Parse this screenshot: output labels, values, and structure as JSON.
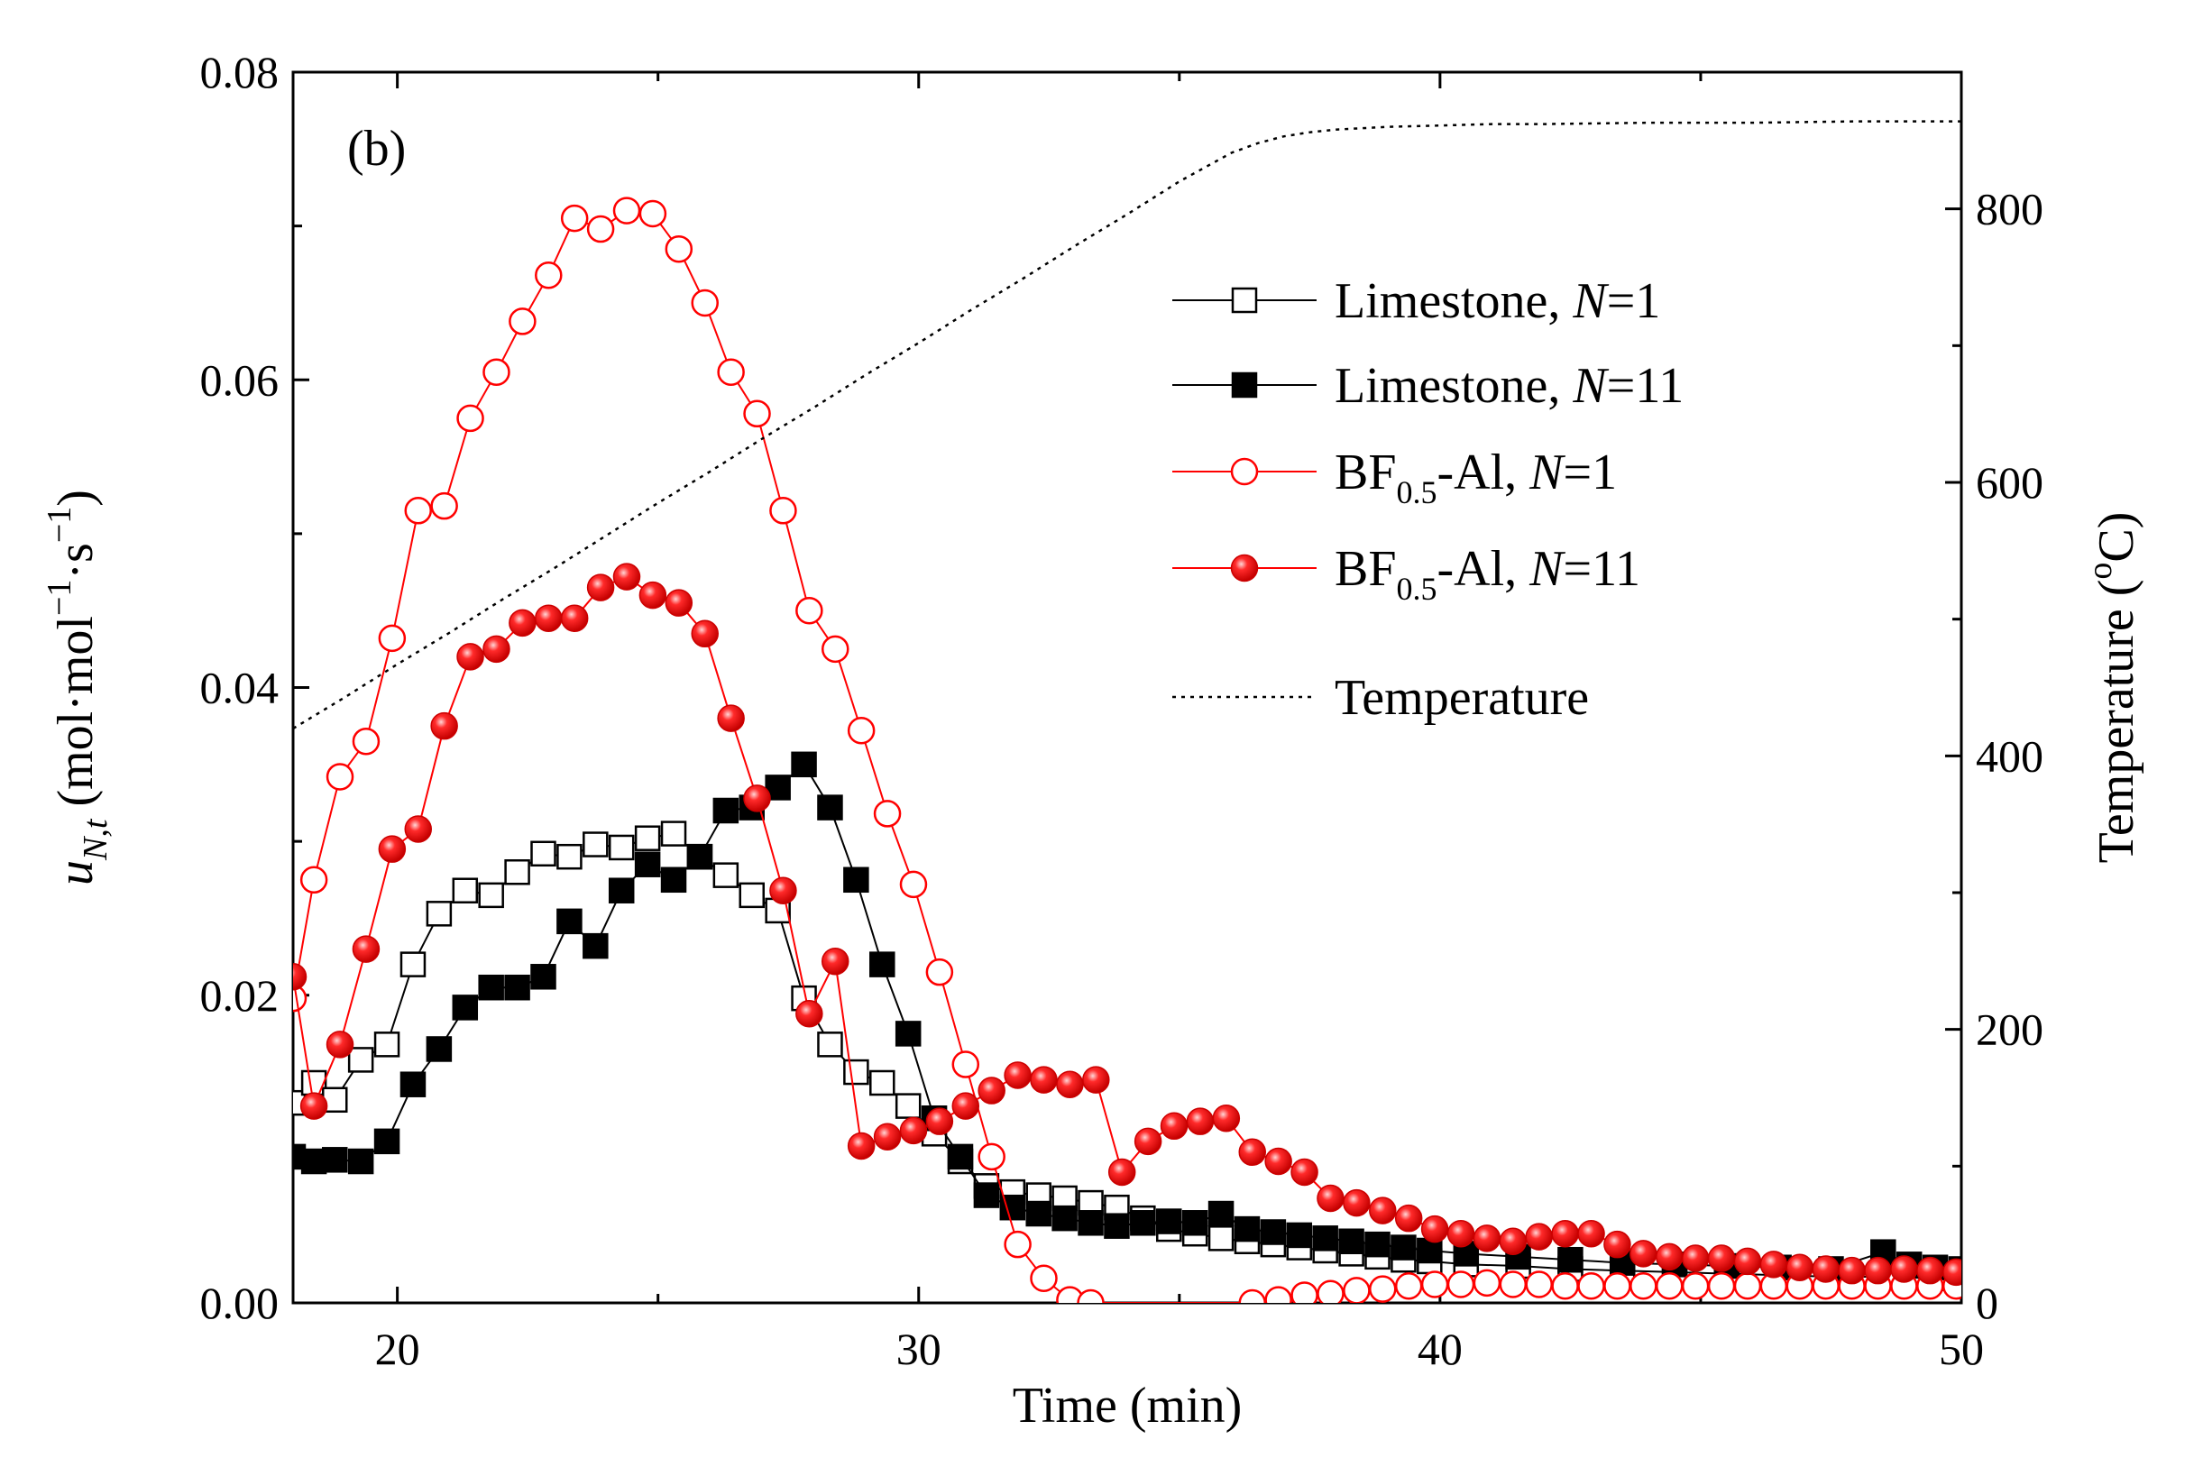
{
  "chart_data": {
    "type": "line",
    "panel_label": "(b)",
    "xlabel": "Time (min)",
    "ylabel": {
      "main": "u",
      "sub": "N,t",
      "unit_open": " (mol·mol",
      "exp1": "−1",
      "unit_mid": "·s",
      "exp2": "−1",
      "unit_close": ")"
    },
    "y2label": {
      "main": "Temperature (",
      "sup": "o",
      "end": "C)"
    },
    "xlim": [
      18,
      50
    ],
    "ylim": [
      0,
      0.08
    ],
    "y2lim": [
      0,
      900
    ],
    "xticks": [
      20,
      30,
      40,
      50
    ],
    "yticks": [
      0,
      0.02,
      0.04,
      0.06,
      0.08
    ],
    "ytick_labels": [
      "0.00",
      "0.02",
      "0.04",
      "0.06",
      "0.08"
    ],
    "y2ticks": [
      0,
      200,
      400,
      600,
      800
    ],
    "legend_position": "upper-right",
    "series": [
      {
        "name": "Limestone, N=1",
        "legend": {
          "base": "Limestone, ",
          "italic": "N",
          "rest": "=1"
        },
        "color": "#000000",
        "marker": "square-open",
        "axis": "left",
        "x": [
          18.0,
          18.4,
          18.8,
          19.3,
          19.8,
          20.3,
          20.8,
          21.3,
          21.8,
          22.3,
          22.8,
          23.3,
          23.8,
          24.3,
          24.8,
          25.3,
          25.8,
          26.3,
          26.8,
          27.3,
          27.8,
          28.3,
          28.8,
          29.3,
          29.8,
          30.3,
          30.8,
          31.3,
          31.8,
          32.3,
          32.8,
          33.3,
          33.8,
          34.3,
          34.8,
          35.3,
          35.8,
          36.3,
          36.8,
          37.3,
          37.8,
          38.3,
          38.8,
          39.3,
          39.8,
          40.5,
          41.5,
          42.5,
          43.5,
          44.5,
          45.5,
          46.5,
          47.5,
          48.5,
          49.5,
          50.0
        ],
        "y": [
          0.013,
          0.0143,
          0.0132,
          0.0158,
          0.0168,
          0.022,
          0.0253,
          0.0268,
          0.0265,
          0.028,
          0.0292,
          0.029,
          0.0298,
          0.0296,
          0.0302,
          0.0305,
          0.029,
          0.0278,
          0.0265,
          0.0255,
          0.0198,
          0.0168,
          0.015,
          0.0143,
          0.0128,
          0.011,
          0.0092,
          0.0076,
          0.0072,
          0.007,
          0.0068,
          0.0065,
          0.0062,
          0.0055,
          0.0048,
          0.0045,
          0.0042,
          0.004,
          0.0038,
          0.0036,
          0.0034,
          0.0032,
          0.003,
          0.0028,
          0.0027,
          0.0025,
          0.0024,
          0.0022,
          0.0021,
          0.002,
          0.0019,
          0.0018,
          0.0017,
          0.0017,
          0.0016,
          0.0016
        ]
      },
      {
        "name": "Limestone, N=11",
        "legend": {
          "base": "Limestone, ",
          "italic": "N",
          "rest": "=11"
        },
        "color": "#000000",
        "marker": "square-filled",
        "axis": "left",
        "x": [
          18.0,
          18.4,
          18.8,
          19.3,
          19.8,
          20.3,
          20.8,
          21.3,
          21.8,
          22.3,
          22.8,
          23.3,
          23.8,
          24.3,
          24.8,
          25.3,
          25.8,
          26.3,
          26.8,
          27.3,
          27.8,
          28.3,
          28.8,
          29.3,
          29.8,
          30.3,
          30.8,
          31.3,
          31.8,
          32.3,
          32.8,
          33.3,
          33.8,
          34.3,
          34.8,
          35.3,
          35.8,
          36.3,
          36.8,
          37.3,
          37.8,
          38.3,
          38.8,
          39.3,
          39.8,
          40.5,
          41.5,
          42.5,
          43.5,
          44.5,
          45.5,
          46.5,
          47.5,
          48.5,
          49.0,
          49.5,
          50.0
        ],
        "y": [
          0.0095,
          0.0092,
          0.0093,
          0.0092,
          0.0105,
          0.0142,
          0.0165,
          0.0192,
          0.0205,
          0.0205,
          0.0212,
          0.0248,
          0.0232,
          0.0268,
          0.0285,
          0.0275,
          0.029,
          0.032,
          0.0322,
          0.0335,
          0.035,
          0.0322,
          0.0275,
          0.022,
          0.0175,
          0.012,
          0.0095,
          0.007,
          0.0062,
          0.0058,
          0.0055,
          0.0052,
          0.005,
          0.0052,
          0.0053,
          0.0052,
          0.0058,
          0.0048,
          0.0046,
          0.0044,
          0.0042,
          0.004,
          0.0038,
          0.0036,
          0.0034,
          0.0032,
          0.003,
          0.0028,
          0.0026,
          0.0025,
          0.0024,
          0.0023,
          0.0022,
          0.0033,
          0.0025,
          0.0023,
          0.0022
        ]
      },
      {
        "name": "BF0.5-Al, N=1",
        "legend": {
          "base": "BF",
          "sub": "0.5",
          "mid": "-Al, ",
          "italic": "N",
          "rest": "=1"
        },
        "color": "#ff0000",
        "marker": "circle-open",
        "axis": "left",
        "x": [
          18.0,
          18.4,
          18.9,
          19.4,
          19.9,
          20.4,
          20.9,
          21.4,
          21.9,
          22.4,
          22.9,
          23.4,
          23.9,
          24.4,
          24.9,
          25.4,
          25.9,
          26.4,
          26.9,
          27.4,
          27.9,
          28.4,
          28.9,
          29.4,
          29.9,
          30.4,
          30.9,
          31.4,
          31.9,
          32.4,
          32.9,
          33.3,
          36.4,
          36.9,
          37.4,
          37.9,
          38.4,
          38.9,
          39.4,
          39.9,
          40.4,
          40.9,
          41.4,
          41.9,
          42.4,
          42.9,
          43.4,
          43.9,
          44.4,
          44.9,
          45.4,
          45.9,
          46.4,
          46.9,
          47.4,
          47.9,
          48.4,
          48.9,
          49.4,
          49.9
        ],
        "y": [
          0.0198,
          0.0275,
          0.0342,
          0.0365,
          0.0432,
          0.0515,
          0.0518,
          0.0575,
          0.0605,
          0.0638,
          0.0668,
          0.0705,
          0.0698,
          0.071,
          0.0708,
          0.0685,
          0.065,
          0.0605,
          0.0578,
          0.0515,
          0.045,
          0.0425,
          0.0372,
          0.0318,
          0.0272,
          0.0215,
          0.0155,
          0.0095,
          0.0038,
          0.0016,
          0.0002,
          0.0,
          0.0,
          0.0002,
          0.0005,
          0.0006,
          0.0008,
          0.0009,
          0.0011,
          0.0012,
          0.0012,
          0.0013,
          0.0012,
          0.0012,
          0.0011,
          0.0011,
          0.0011,
          0.0011,
          0.0011,
          0.0011,
          0.0011,
          0.0011,
          0.0011,
          0.0011,
          0.0011,
          0.0011,
          0.0011,
          0.0011,
          0.0011,
          0.0011
        ]
      },
      {
        "name": "BF0.5-Al, N=11",
        "legend": {
          "base": "BF",
          "sub": "0.5",
          "mid": "-Al, ",
          "italic": "N",
          "rest": "=11"
        },
        "color": "#ff0000",
        "marker": "circle-filled",
        "axis": "left",
        "x": [
          18.0,
          18.4,
          18.9,
          19.4,
          19.9,
          20.4,
          20.9,
          21.4,
          21.9,
          22.4,
          22.9,
          23.4,
          23.9,
          24.4,
          24.9,
          25.4,
          25.9,
          26.4,
          26.9,
          27.4,
          27.9,
          28.4,
          28.9,
          29.4,
          29.9,
          30.4,
          30.9,
          31.4,
          31.9,
          32.4,
          32.9,
          33.4,
          33.9,
          34.4,
          34.9,
          35.4,
          35.9,
          36.4,
          36.9,
          37.4,
          37.9,
          38.4,
          38.9,
          39.4,
          39.9,
          40.4,
          40.9,
          41.4,
          41.9,
          42.4,
          42.9,
          43.4,
          43.9,
          44.4,
          44.9,
          45.4,
          45.9,
          46.4,
          46.9,
          47.4,
          47.9,
          48.4,
          48.9,
          49.4,
          49.9
        ],
        "y": [
          0.0212,
          0.0128,
          0.0168,
          0.023,
          0.0295,
          0.0308,
          0.0375,
          0.042,
          0.0425,
          0.0442,
          0.0445,
          0.0445,
          0.0465,
          0.0472,
          0.046,
          0.0455,
          0.0435,
          0.038,
          0.0328,
          0.0268,
          0.0188,
          0.0222,
          0.0102,
          0.0108,
          0.0112,
          0.0118,
          0.0128,
          0.0138,
          0.0148,
          0.0145,
          0.0142,
          0.0145,
          0.0085,
          0.0105,
          0.0115,
          0.0118,
          0.012,
          0.0098,
          0.0092,
          0.0085,
          0.0068,
          0.0065,
          0.006,
          0.0055,
          0.0048,
          0.0045,
          0.0042,
          0.004,
          0.0043,
          0.0045,
          0.0045,
          0.0038,
          0.0032,
          0.003,
          0.0029,
          0.0029,
          0.0027,
          0.0025,
          0.0023,
          0.0022,
          0.0021,
          0.0021,
          0.0022,
          0.0021,
          0.002
        ]
      },
      {
        "name": "Temperature",
        "legend": {
          "base": "Temperature"
        },
        "color": "#000000",
        "marker": "none",
        "line": "dotted",
        "axis": "right",
        "x": [
          18.0,
          19.0,
          20.0,
          21.0,
          22.0,
          23.0,
          24.0,
          25.0,
          26.0,
          27.0,
          28.0,
          29.0,
          30.0,
          31.0,
          32.0,
          33.0,
          34.0,
          35.0,
          36.0,
          36.5,
          37.0,
          37.5,
          38.0,
          39.0,
          40.0,
          41.0,
          42.0,
          44.0,
          46.0,
          48.0,
          50.0
        ],
        "y": [
          420,
          443,
          467,
          490,
          514,
          537,
          561,
          585,
          608,
          632,
          655,
          679,
          702,
          726,
          749,
          773,
          796,
          820,
          841,
          848,
          853,
          856,
          858,
          860,
          861,
          862,
          862,
          863,
          863,
          864,
          864
        ]
      }
    ]
  }
}
